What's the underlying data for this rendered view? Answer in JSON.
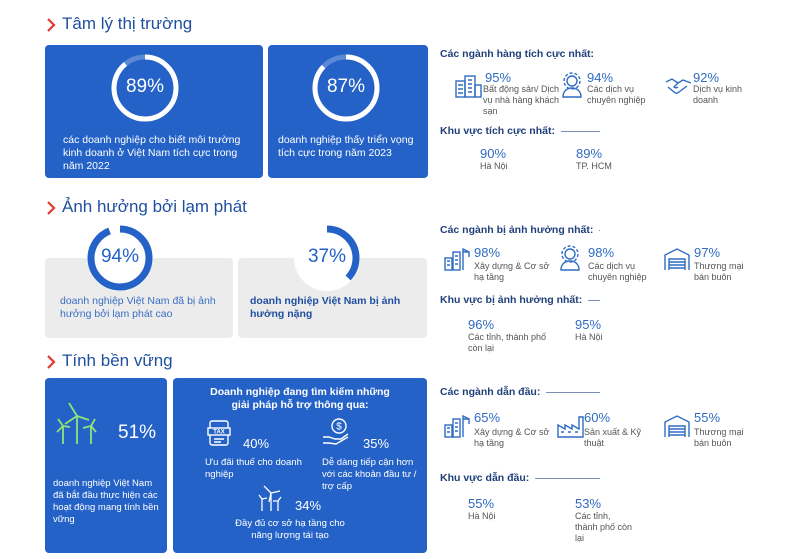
{
  "sections": [
    {
      "title": "Tâm lý thị trường",
      "cards": [
        {
          "stat": {
            "value": 89,
            "label": "89%"
          },
          "text": "các doanh nghiệp cho biết môi trường kinh doanh ở Việt Nam tích cực trong năm 2022"
        },
        {
          "stat": {
            "value": 87,
            "label": "87%"
          },
          "text": "doanh nghiệp thấy triển vọng tích cực trong năm 2023"
        }
      ],
      "panel": [
        {
          "heading": "Các ngành hàng tích cực nhất:",
          "items": [
            {
              "value": "95%",
              "label": "Bất động sản/ Dịch vụ nhà hàng khách sạn"
            },
            {
              "value": "94%",
              "label": "Các dịch vụ chuyên nghiệp"
            },
            {
              "value": "92%",
              "label": "Dịch vụ kinh doanh"
            }
          ]
        },
        {
          "heading": "Khu vực tích cực nhất:",
          "items": [
            {
              "value": "90%",
              "label": "Hà Nội"
            },
            {
              "value": "89%",
              "label": "TP. HCM"
            }
          ]
        }
      ]
    },
    {
      "title": "Ảnh hưởng bởi lạm phát",
      "cards": [
        {
          "stat": {
            "value": 94,
            "label": "94%"
          },
          "text": "doanh nghiệp Việt Nam đã bị ảnh hưởng bởi lạm phát cao"
        },
        {
          "stat": {
            "value": 37,
            "label": "37%"
          },
          "text": "doanh nghiệp Việt Nam bị ảnh hưởng nặng"
        }
      ],
      "panel": [
        {
          "heading": "Các ngành bị ảnh hưởng nhất:",
          "items": [
            {
              "value": "98%",
              "label": "Xây dựng & Cơ sở hạ tầng"
            },
            {
              "value": "98%",
              "label": "Các dịch vụ chuyên nghiệp"
            },
            {
              "value": "97%",
              "label": "Thương mại bán buôn"
            }
          ]
        },
        {
          "heading": "Khu vực bị ảnh hưởng nhất:",
          "items": [
            {
              "value": "96%",
              "label": "Các tỉnh, thành phố còn lại"
            },
            {
              "value": "95%",
              "label": "Hà Nội"
            }
          ]
        }
      ]
    },
    {
      "title": "Tính bền vững",
      "cards": [
        {
          "stat": "51%",
          "text": "doanh nghiệp Việt Nam đã bắt đầu thực hiện các hoạt động mang tính bền vững"
        },
        {
          "title": "Doanh nghiệp đang tìm kiếm những giải pháp hỗ trợ thông qua:",
          "items": [
            {
              "value": "40%",
              "label": "Ưu đãi thuế cho doanh nghiệp"
            },
            {
              "value": "35%",
              "label": "Dễ dàng tiếp cận hơn với các khoản đầu tư / trợ cấp"
            },
            {
              "value": "34%",
              "label": "Đầy đủ cơ sở hạ tầng cho năng lượng tái tạo"
            }
          ]
        }
      ],
      "panel": [
        {
          "heading": "Các ngành dẫn đầu:",
          "items": [
            {
              "value": "65%",
              "label": "Xây dựng & Cơ sở hạ tầng"
            },
            {
              "value": "60%",
              "label": "Sản xuất & Kỹ thuật"
            },
            {
              "value": "55%",
              "label": "Thương mại bán buôn"
            }
          ]
        },
        {
          "heading": "Khu vực dẫn đầu:",
          "items": [
            {
              "value": "55%",
              "label": "Hà Nội"
            },
            {
              "value": "53%",
              "label": "Các tỉnh, thành phố còn lại"
            }
          ]
        }
      ]
    }
  ]
}
